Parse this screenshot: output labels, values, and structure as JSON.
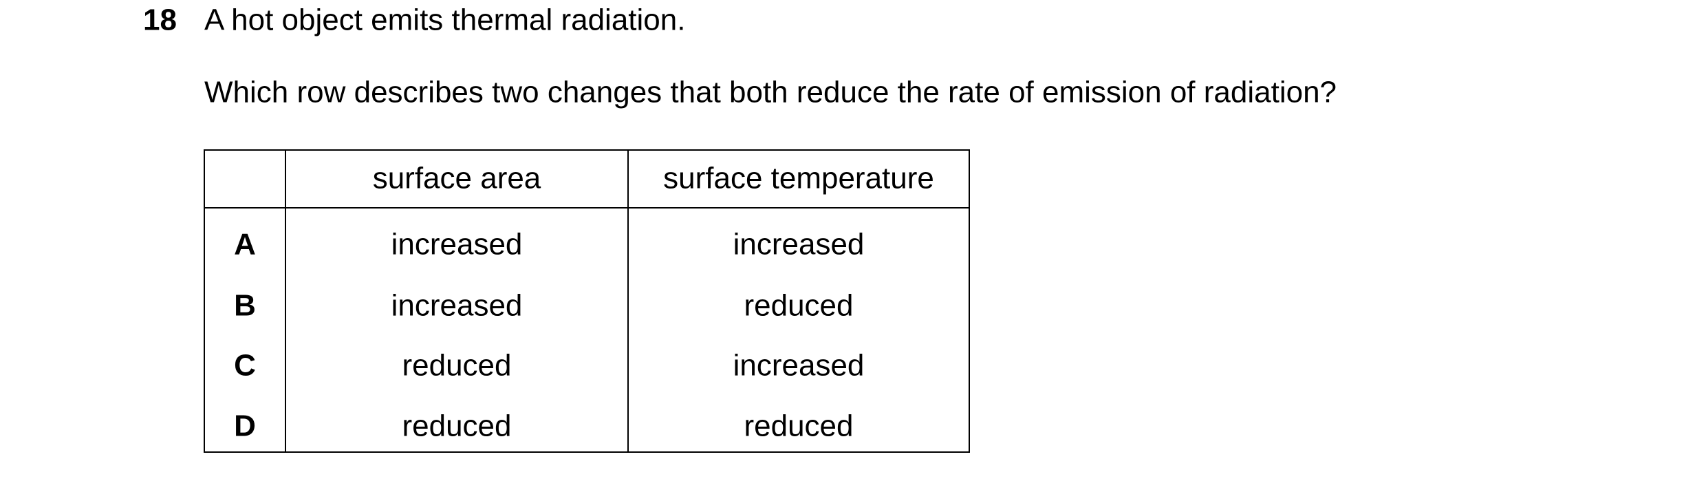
{
  "question": {
    "number": "18",
    "stem": "A hot object emits thermal radiation.",
    "prompt": "Which row describes two changes that both reduce the rate of emission of radiation?"
  },
  "table": {
    "header": [
      "surface area",
      "surface temperature"
    ],
    "rows": [
      [
        "A",
        "increased",
        "increased"
      ],
      [
        "B",
        "increased",
        "reduced"
      ],
      [
        "C",
        "reduced",
        "increased"
      ],
      [
        "D",
        "reduced",
        "reduced"
      ]
    ]
  }
}
